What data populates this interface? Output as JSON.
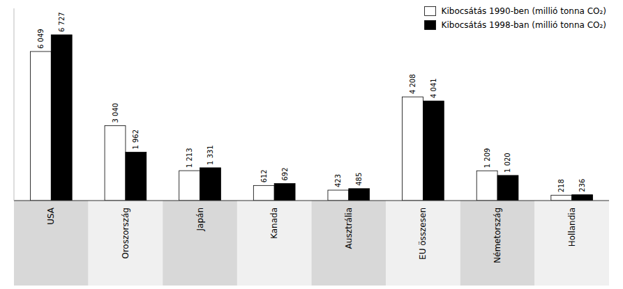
{
  "chart_data": {
    "type": "bar",
    "categories": [
      "USA",
      "Oroszország",
      "Japán",
      "Kanada",
      "Ausztrália",
      "EU összesen",
      "Németország",
      "Hollandia"
    ],
    "series": [
      {
        "name": "Kibocsátás 1990-ben (millió tonna CO₂)",
        "color": "#ffffff",
        "values": [
          6049,
          3040,
          1213,
          612,
          423,
          4208,
          1209,
          218
        ],
        "value_labels": [
          "6 049",
          "3 040",
          "1 213",
          "612",
          "423",
          "4 208",
          "1 209",
          "218"
        ]
      },
      {
        "name": "Kibocsátás 1998-ban (millió tonna CO₂)",
        "color": "#000000",
        "values": [
          6727,
          1962,
          1331,
          692,
          485,
          4041,
          1020,
          236
        ],
        "value_labels": [
          "6 727",
          "1 962",
          "1 331",
          "692",
          "485",
          "4 041",
          "1 020",
          "236"
        ]
      }
    ],
    "ylim": [
      0,
      7800
    ],
    "data_labels": true,
    "tick_labels": "x",
    "legend": "upper right",
    "grid": false
  }
}
